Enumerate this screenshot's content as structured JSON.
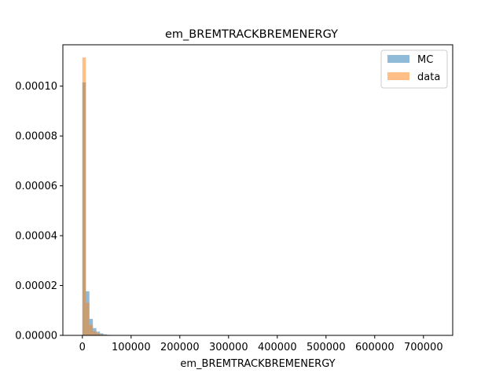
{
  "chart_data": {
    "type": "bar",
    "subtype": "histogram",
    "title": "em_BREMTRACKBREMENERGY",
    "xlabel": "em_BREMTRACKBREMENERGY",
    "ylabel": "",
    "xlim": [
      -40000,
      760000
    ],
    "ylim": [
      0,
      0.0001166
    ],
    "xticks": [
      0,
      100000,
      200000,
      300000,
      400000,
      500000,
      600000,
      700000
    ],
    "xtick_labels": [
      "0",
      "100000",
      "200000",
      "300000",
      "400000",
      "500000",
      "600000",
      "700000"
    ],
    "yticks": [
      0,
      2e-05,
      4e-05,
      6e-05,
      8e-05,
      0.0001
    ],
    "ytick_labels": [
      "0.00000",
      "0.00002",
      "0.00004",
      "0.00006",
      "0.00008",
      "0.00010"
    ],
    "legend_position": "top-right",
    "bin_width": 7200,
    "bin_start": 0,
    "series": [
      {
        "name": "MC",
        "color": "#1f77b4",
        "alpha": 0.5,
        "values": [
          0.0001015,
          1.77e-05,
          6.6e-06,
          2.9e-06,
          1.5e-06,
          8e-07,
          4e-07,
          2e-07,
          1e-07,
          5e-08
        ]
      },
      {
        "name": "data",
        "color": "#ff7f0e",
        "alpha": 0.5,
        "values": [
          0.0001115,
          1.31e-05,
          4.2e-06,
          1.7e-06,
          8e-07,
          4e-07,
          2e-07,
          1e-07,
          5e-08,
          2e-08
        ]
      }
    ]
  }
}
